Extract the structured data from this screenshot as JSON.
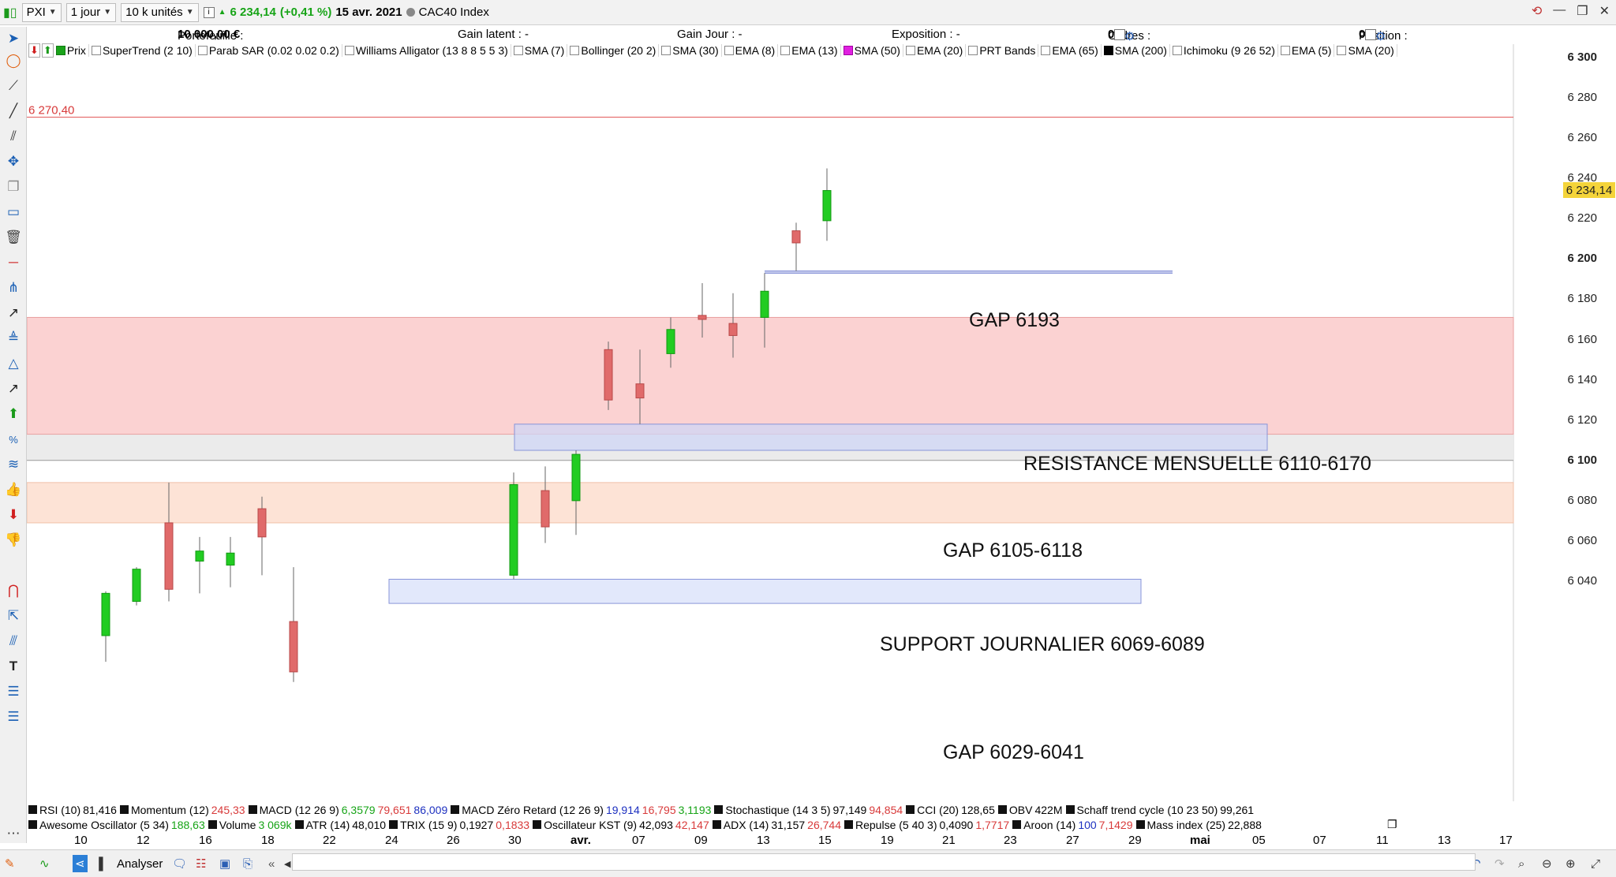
{
  "topbar": {
    "symbol": "PXI",
    "period": "1 jour",
    "units": "10 k unités",
    "last_price": "6 234,14",
    "change": "(+0,41 %)",
    "date": "15 avr. 2021",
    "instrument": "CAC40 Index"
  },
  "account": {
    "portefeuille_label": "Portefeuille :",
    "portefeuille_value": "10 000,00 €",
    "gain_latent": "Gain latent : -",
    "gain_jour": "Gain Jour : -",
    "exposition": "Exposition : -",
    "ordres_label": "Ordres :",
    "ordres_a": "0",
    "ordres_b": "0",
    "position_label": "Position :",
    "position_a": "0",
    "position_b": "0"
  },
  "indicators": [
    {
      "label": "Prix",
      "state": "green"
    },
    {
      "label": "SuperTrend (2 10)",
      "state": "off"
    },
    {
      "label": "Parab SAR (0.02 0.02 0.2)",
      "state": "off"
    },
    {
      "label": "Williams Alligator (13 8 8 5 5 3)",
      "state": "off"
    },
    {
      "label": "SMA (7)",
      "state": "off"
    },
    {
      "label": "Bollinger (20 2)",
      "state": "off"
    },
    {
      "label": "SMA (30)",
      "state": "off"
    },
    {
      "label": "EMA (8)",
      "state": "off"
    },
    {
      "label": "EMA (13)",
      "state": "off"
    },
    {
      "label": "SMA (50)",
      "state": "magenta"
    },
    {
      "label": "EMA (20)",
      "state": "off"
    },
    {
      "label": "PRT Bands",
      "state": "off"
    },
    {
      "label": "EMA (65)",
      "state": "off"
    },
    {
      "label": "SMA (200)",
      "state": "on"
    },
    {
      "label": "Ichimoku (9 26 52)",
      "state": "off"
    },
    {
      "label": "EMA (5)",
      "state": "off"
    },
    {
      "label": "SMA (20)",
      "state": "off"
    }
  ],
  "oscillators_row1": [
    {
      "name": "RSI (10)",
      "values": [
        {
          "v": "81,416",
          "c": "k"
        }
      ]
    },
    {
      "name": "Momentum (12)",
      "values": [
        {
          "v": "245,33",
          "c": "neg"
        }
      ]
    },
    {
      "name": "MACD (12 26 9)",
      "values": [
        {
          "v": "6,3579",
          "c": "pos"
        },
        {
          "v": "79,651",
          "c": "neg"
        },
        {
          "v": "86,009",
          "c": "blu"
        }
      ]
    },
    {
      "name": "MACD Zéro Retard (12 26 9)",
      "values": [
        {
          "v": "19,914",
          "c": "blu"
        },
        {
          "v": "16,795",
          "c": "neg"
        },
        {
          "v": "3,1193",
          "c": "pos"
        }
      ]
    },
    {
      "name": "Stochastique (14 3 5)",
      "values": [
        {
          "v": "97,149",
          "c": "k"
        },
        {
          "v": "94,854",
          "c": "neg"
        }
      ]
    },
    {
      "name": "CCI (20)",
      "values": [
        {
          "v": "128,65",
          "c": "k"
        }
      ]
    },
    {
      "name": "OBV",
      "values": [
        {
          "v": "422M",
          "c": "k"
        }
      ]
    },
    {
      "name": "Schaff trend cycle (10 23 50)",
      "values": [
        {
          "v": "99,261",
          "c": "k"
        }
      ]
    }
  ],
  "oscillators_row2": [
    {
      "name": "Awesome Oscillator (5 34)",
      "values": [
        {
          "v": "188,63",
          "c": "pos"
        }
      ]
    },
    {
      "name": "Volume",
      "values": [
        {
          "v": "3 069k",
          "c": "pos"
        }
      ]
    },
    {
      "name": "ATR (14)",
      "values": [
        {
          "v": "48,010",
          "c": "k"
        }
      ]
    },
    {
      "name": "TRIX (15 9)",
      "values": [
        {
          "v": "0,1927",
          "c": "k"
        },
        {
          "v": "0,1833",
          "c": "neg"
        }
      ]
    },
    {
      "name": "Oscillateur KST (9)",
      "values": [
        {
          "v": "42,093",
          "c": "k"
        },
        {
          "v": "42,147",
          "c": "neg"
        }
      ]
    },
    {
      "name": "ADX (14)",
      "values": [
        {
          "v": "31,157",
          "c": "k"
        },
        {
          "v": "26,744",
          "c": "neg"
        }
      ]
    },
    {
      "name": "Repulse (5 40 3)",
      "values": [
        {
          "v": "0,4090",
          "c": "k"
        },
        {
          "v": "1,7717",
          "c": "neg"
        }
      ]
    },
    {
      "name": "Aroon (14)",
      "values": [
        {
          "v": "100",
          "c": "blu"
        },
        {
          "v": "7,1429",
          "c": "neg"
        }
      ]
    },
    {
      "name": "Mass index (25)",
      "values": [
        {
          "v": "22,888",
          "c": "k"
        }
      ]
    }
  ],
  "bottom": {
    "analyser": "Analyser"
  },
  "chart_data": {
    "type": "candlestick",
    "ylim": [
      6020,
      6310
    ],
    "yticks": [
      6040,
      6060,
      6080,
      6100,
      6120,
      6140,
      6160,
      6180,
      6200,
      6220,
      6240,
      6260,
      6280,
      6300
    ],
    "ytick_labels": [
      "6 040",
      "6 060",
      "6 080",
      "6 100",
      "6 120",
      "6 140",
      "6 160",
      "6 180",
      "6 200",
      "6 220",
      "6 240",
      "6 260",
      "6 280",
      "6 300"
    ],
    "bold_ticks": [
      "6 100",
      "6 200",
      "6 300"
    ],
    "last_price_label": "6 234,14",
    "last_price": 6234.14,
    "hline_label": "6 270,40",
    "hline_value": 6270.4,
    "x_ticks": [
      "10",
      "12",
      "16",
      "18",
      "22",
      "24",
      "26",
      "30",
      "avr.",
      "07",
      "09",
      "13",
      "15",
      "19",
      "21",
      "23",
      "27",
      "29",
      "mai",
      "05",
      "07",
      "11",
      "13",
      "17"
    ],
    "candles": [
      {
        "date": "2021-03-11",
        "o": 6013,
        "h": 6035,
        "l": 6000,
        "c": 6034
      },
      {
        "date": "2021-03-12",
        "o": 6030,
        "h": 6047,
        "l": 6028,
        "c": 6046
      },
      {
        "date": "2021-03-15",
        "o": 6069,
        "h": 6089,
        "l": 6030,
        "c": 6036
      },
      {
        "date": "2021-03-16",
        "o": 6050,
        "h": 6062,
        "l": 6034,
        "c": 6055
      },
      {
        "date": "2021-03-17",
        "o": 6048,
        "h": 6062,
        "l": 6037,
        "c": 6054
      },
      {
        "date": "2021-03-18",
        "o": 6076,
        "h": 6082,
        "l": 6043,
        "c": 6062
      },
      {
        "date": "2021-03-19",
        "o": 6020,
        "h": 6047,
        "l": 5990,
        "c": 5995
      },
      {
        "date": "2021-03-29",
        "o": 6043,
        "h": 6094,
        "l": 6041,
        "c": 6088
      },
      {
        "date": "2021-03-30",
        "o": 6085,
        "h": 6097,
        "l": 6059,
        "c": 6067
      },
      {
        "date": "2021-03-31",
        "o": 6080,
        "h": 6105,
        "l": 6063,
        "c": 6103
      },
      {
        "date": "2021-04-06",
        "o": 6155,
        "h": 6159,
        "l": 6125,
        "c": 6130
      },
      {
        "date": "2021-04-07",
        "o": 6138,
        "h": 6155,
        "l": 6118,
        "c": 6131
      },
      {
        "date": "2021-04-08",
        "o": 6153,
        "h": 6171,
        "l": 6146,
        "c": 6165
      },
      {
        "date": "2021-04-09",
        "o": 6172,
        "h": 6188,
        "l": 6161,
        "c": 6170
      },
      {
        "date": "2021-04-12",
        "o": 6168,
        "h": 6183,
        "l": 6151,
        "c": 6162
      },
      {
        "date": "2021-04-13",
        "o": 6171,
        "h": 6193,
        "l": 6156,
        "c": 6184
      },
      {
        "date": "2021-04-14",
        "o": 6214,
        "h": 6218,
        "l": 6194,
        "c": 6208
      },
      {
        "date": "2021-04-15",
        "o": 6219,
        "h": 6245,
        "l": 6209,
        "c": 6234
      }
    ],
    "zones": [
      {
        "label": "RESISTANCE MENSUELLE 6110-6170",
        "low": 6113,
        "high": 6171,
        "color": "#fbd2d2",
        "border": "#e8a0a0"
      },
      {
        "label": "SUPPORT JOURNALIER 6069-6089",
        "low": 6069,
        "high": 6089,
        "color": "#fde3d6",
        "border": "#f0c0a8"
      },
      {
        "label": "GAP 6105-6118",
        "low": 6105,
        "high": 6118,
        "color": "#cfd5f5",
        "border": "#8894d8"
      },
      {
        "label": "GAP 6029-6041",
        "low": 6029,
        "high": 6041,
        "color": "#e2e8fb",
        "border": "#8894d8"
      },
      {
        "label": "GAP 6193",
        "low": 6193,
        "high": 6194,
        "color": "#e2e8fb",
        "border": "#8894d8"
      }
    ]
  }
}
